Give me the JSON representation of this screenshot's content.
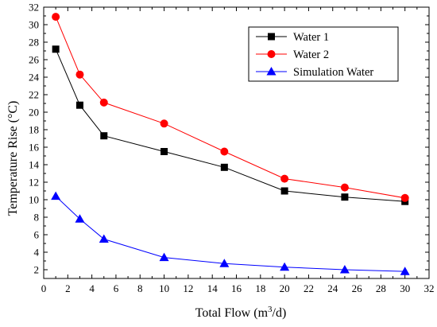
{
  "chart_data": {
    "type": "line",
    "title": "",
    "xlabel": {
      "main": "Total Flow (m",
      "sup": "3",
      "rest": "/d)"
    },
    "ylabel": "Temperature Rise (°C)",
    "xlim": [
      0,
      32
    ],
    "ylim": [
      1,
      32
    ],
    "xticks": [
      0,
      2,
      4,
      6,
      8,
      10,
      12,
      14,
      16,
      18,
      20,
      22,
      24,
      26,
      28,
      30,
      32
    ],
    "yticks": [
      2,
      4,
      6,
      8,
      10,
      12,
      14,
      16,
      18,
      20,
      22,
      24,
      26,
      28,
      30,
      32
    ],
    "grid": false,
    "legend_position": "top-right",
    "x": [
      1,
      3,
      5,
      10,
      15,
      20,
      25,
      30
    ],
    "series": [
      {
        "name": "Water 1",
        "color": "#000000",
        "marker": "square",
        "values": [
          27.2,
          20.8,
          17.3,
          15.5,
          13.7,
          11.0,
          10.3,
          9.8
        ]
      },
      {
        "name": "Water 2",
        "color": "#ff0000",
        "marker": "circle",
        "values": [
          30.9,
          24.3,
          21.1,
          18.7,
          15.5,
          12.4,
          11.4,
          10.2
        ]
      },
      {
        "name": "Simulation Water",
        "color": "#0000ff",
        "marker": "triangle",
        "values": [
          10.4,
          7.8,
          5.5,
          3.4,
          2.7,
          2.3,
          2.0,
          1.8
        ]
      }
    ]
  }
}
